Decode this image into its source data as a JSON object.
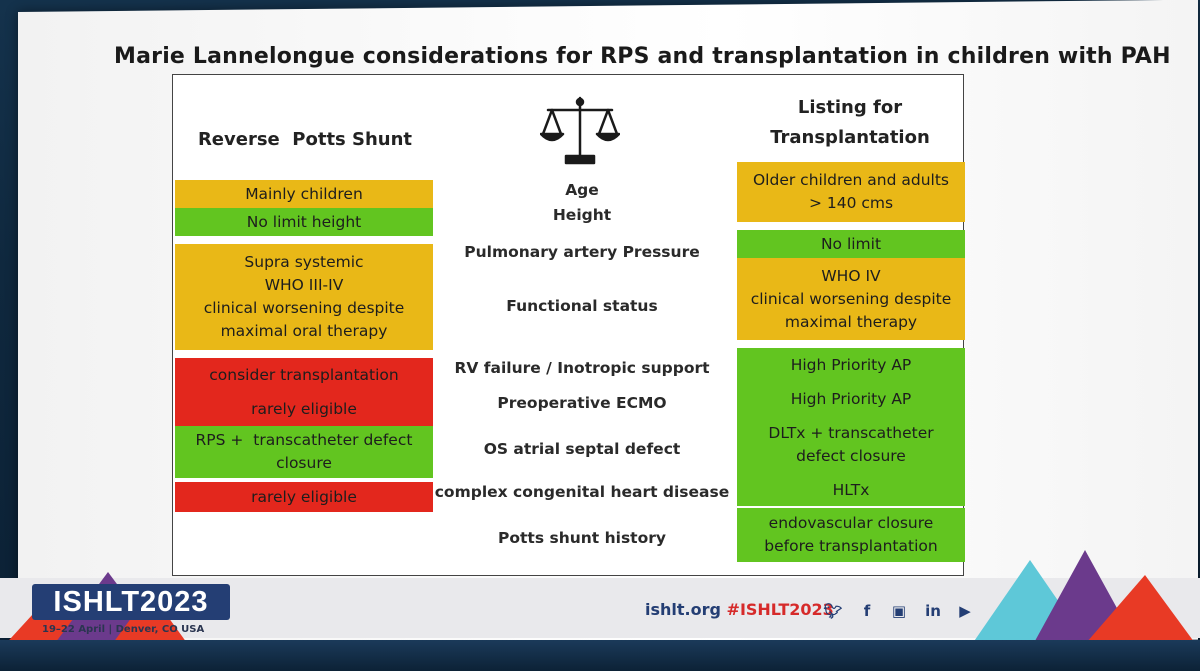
{
  "slide": {
    "title": "Marie Lannelongue considerations for RPS and transplantation in children with PAH"
  },
  "headers": {
    "left": "Reverse  Potts Shunt",
    "right_line1": "Listing for",
    "right_line2": "Transplantation"
  },
  "icons": {
    "balance": "balance-scale-icon"
  },
  "colors": {
    "amber": "#e9b817",
    "green": "#62c520",
    "red": "#e3271d"
  },
  "rows": {
    "age": {
      "left_line1": "Mainly children",
      "left_line2": "No limit height",
      "mid_line1": "Age",
      "mid_line2": "Height",
      "right_line1": "Older children and adults",
      "right_line2": "> 140 cms"
    },
    "pressure": {
      "left_line1": "Supra systemic",
      "left_line2": "WHO III-IV",
      "left_line3": "clinical worsening despite",
      "left_line4": "maximal oral therapy",
      "mid_line1": "Pulmonary artery Pressure",
      "mid_line2": "Functional status",
      "right_line1": "No limit",
      "right_line2": "WHO IV",
      "right_line3": "clinical worsening despite",
      "right_line4": "maximal therapy"
    },
    "rv_failure": {
      "left": "consider transplantation",
      "mid": "RV failure / Inotropic support",
      "right": "High Priority AP"
    },
    "ecmo": {
      "left": "rarely eligible",
      "mid": "Preoperative ECMO",
      "right": "High Priority AP"
    },
    "asd": {
      "left_line1": "RPS +  transcatheter defect",
      "left_line2": "closure",
      "mid": "OS atrial septal defect",
      "right_line1": "DLTx + transcatheter",
      "right_line2": "defect closure"
    },
    "chd": {
      "left": "rarely eligible",
      "mid": "complex congenital heart disease",
      "right": "HLTx"
    },
    "potts": {
      "mid": "Potts shunt history",
      "right_line1": "endovascular closure",
      "right_line2": "before transplantation"
    }
  },
  "footer": {
    "logo": "ISHLT2023",
    "subline": "19–22 April  |  Denver, CO USA",
    "site": "ishlt.org",
    "hashtag": "#ISHLT2023",
    "social": [
      "twitter-icon",
      "facebook-icon",
      "instagram-icon",
      "linkedin-icon",
      "youtube-icon"
    ]
  }
}
